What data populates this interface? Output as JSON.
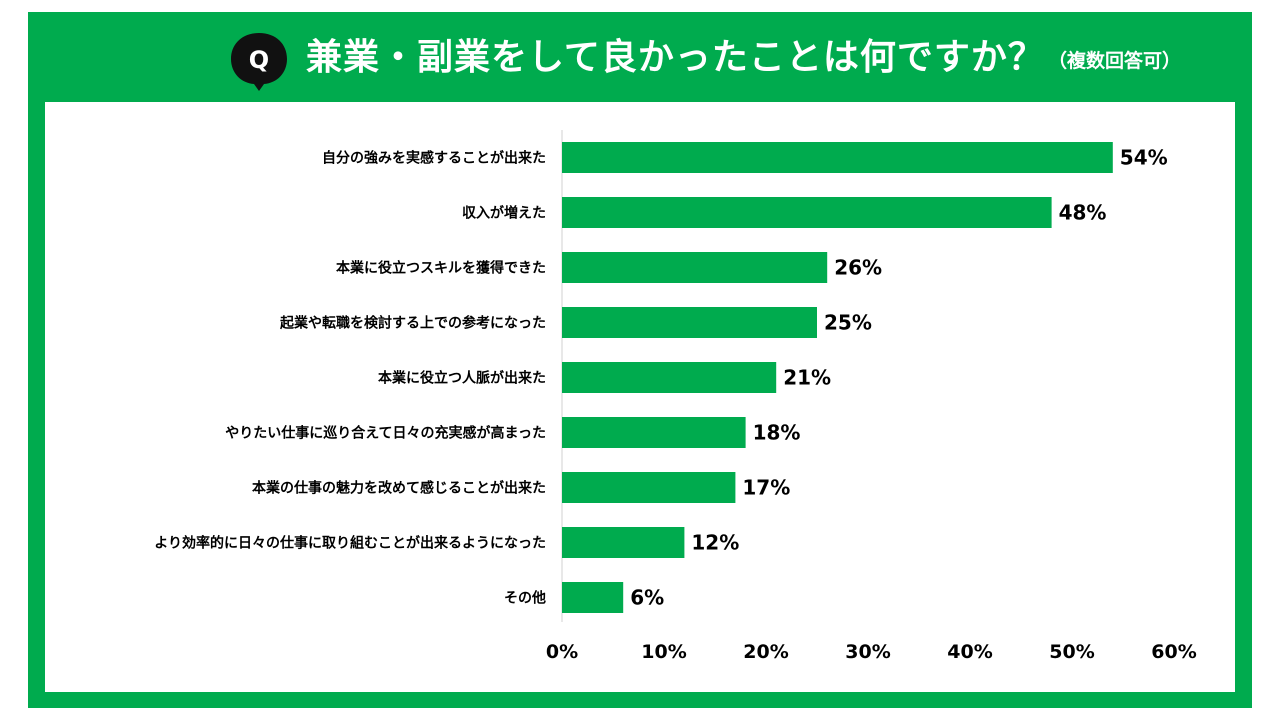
{
  "header": {
    "badge": "Q",
    "title": "兼業・副業をして良かったことは何ですか？",
    "subtitle": "（複数回答可）"
  },
  "colors": {
    "frame": "#00ab4e",
    "bar": "#00ab4e",
    "badge": "#111111"
  },
  "chart_data": {
    "type": "bar",
    "orientation": "horizontal",
    "title": "兼業・副業をして良かったことは何ですか？",
    "subtitle": "（複数回答可）",
    "xlabel": "",
    "ylabel": "",
    "categories": [
      "自分の強みを実感することが出来た",
      "収入が増えた",
      "本業に役立つスキルを獲得できた",
      "起業や転職を検討する上での参考になった",
      "本業に役立つ人脈が出来た",
      "やりたい仕事に巡り合えて日々の充実感が高まった",
      "本業の仕事の魅力を改めて感じることが出来た",
      "より効率的に日々の仕事に取り組むことが出来るようになった",
      "その他"
    ],
    "values": [
      54,
      48,
      26,
      25,
      21,
      18,
      17,
      12,
      6
    ],
    "value_labels": [
      "54%",
      "48%",
      "26%",
      "25%",
      "21%",
      "18%",
      "17%",
      "12%",
      "6%"
    ],
    "xlim": [
      0,
      60
    ],
    "xticks": [
      0,
      10,
      20,
      30,
      40,
      50,
      60
    ],
    "xtick_labels": [
      "0%",
      "10%",
      "20%",
      "30%",
      "40%",
      "50%",
      "60%"
    ],
    "grid": false,
    "legend": "none"
  }
}
